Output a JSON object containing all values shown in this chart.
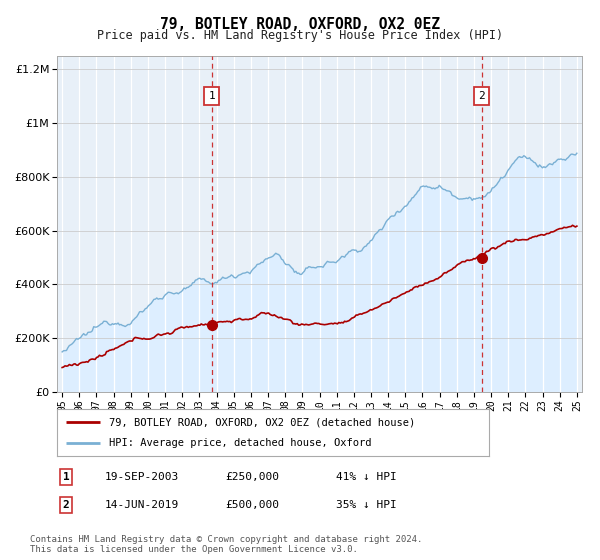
{
  "title": "79, BOTLEY ROAD, OXFORD, OX2 0EZ",
  "subtitle": "Price paid vs. HM Land Registry's House Price Index (HPI)",
  "legend_line1": "79, BOTLEY ROAD, OXFORD, OX2 0EZ (detached house)",
  "legend_line2": "HPI: Average price, detached house, Oxford",
  "annotation1_label": "1",
  "annotation1_date": "19-SEP-2003",
  "annotation1_price": "£250,000",
  "annotation1_hpi": "41% ↓ HPI",
  "annotation1_year": 2003.72,
  "annotation2_label": "2",
  "annotation2_date": "14-JUN-2019",
  "annotation2_price": "£500,000",
  "annotation2_hpi": "35% ↓ HPI",
  "annotation2_year": 2019.45,
  "footer": "Contains HM Land Registry data © Crown copyright and database right 2024.\nThis data is licensed under the Open Government Licence v3.0.",
  "hpi_color": "#7ab0d4",
  "hpi_fill_color": "#ddeeff",
  "price_color": "#aa0000",
  "plot_bg_color": "#e8f0f8",
  "ylim": [
    0,
    1250000
  ],
  "xlim_start": 1994.7,
  "xlim_end": 2025.3
}
